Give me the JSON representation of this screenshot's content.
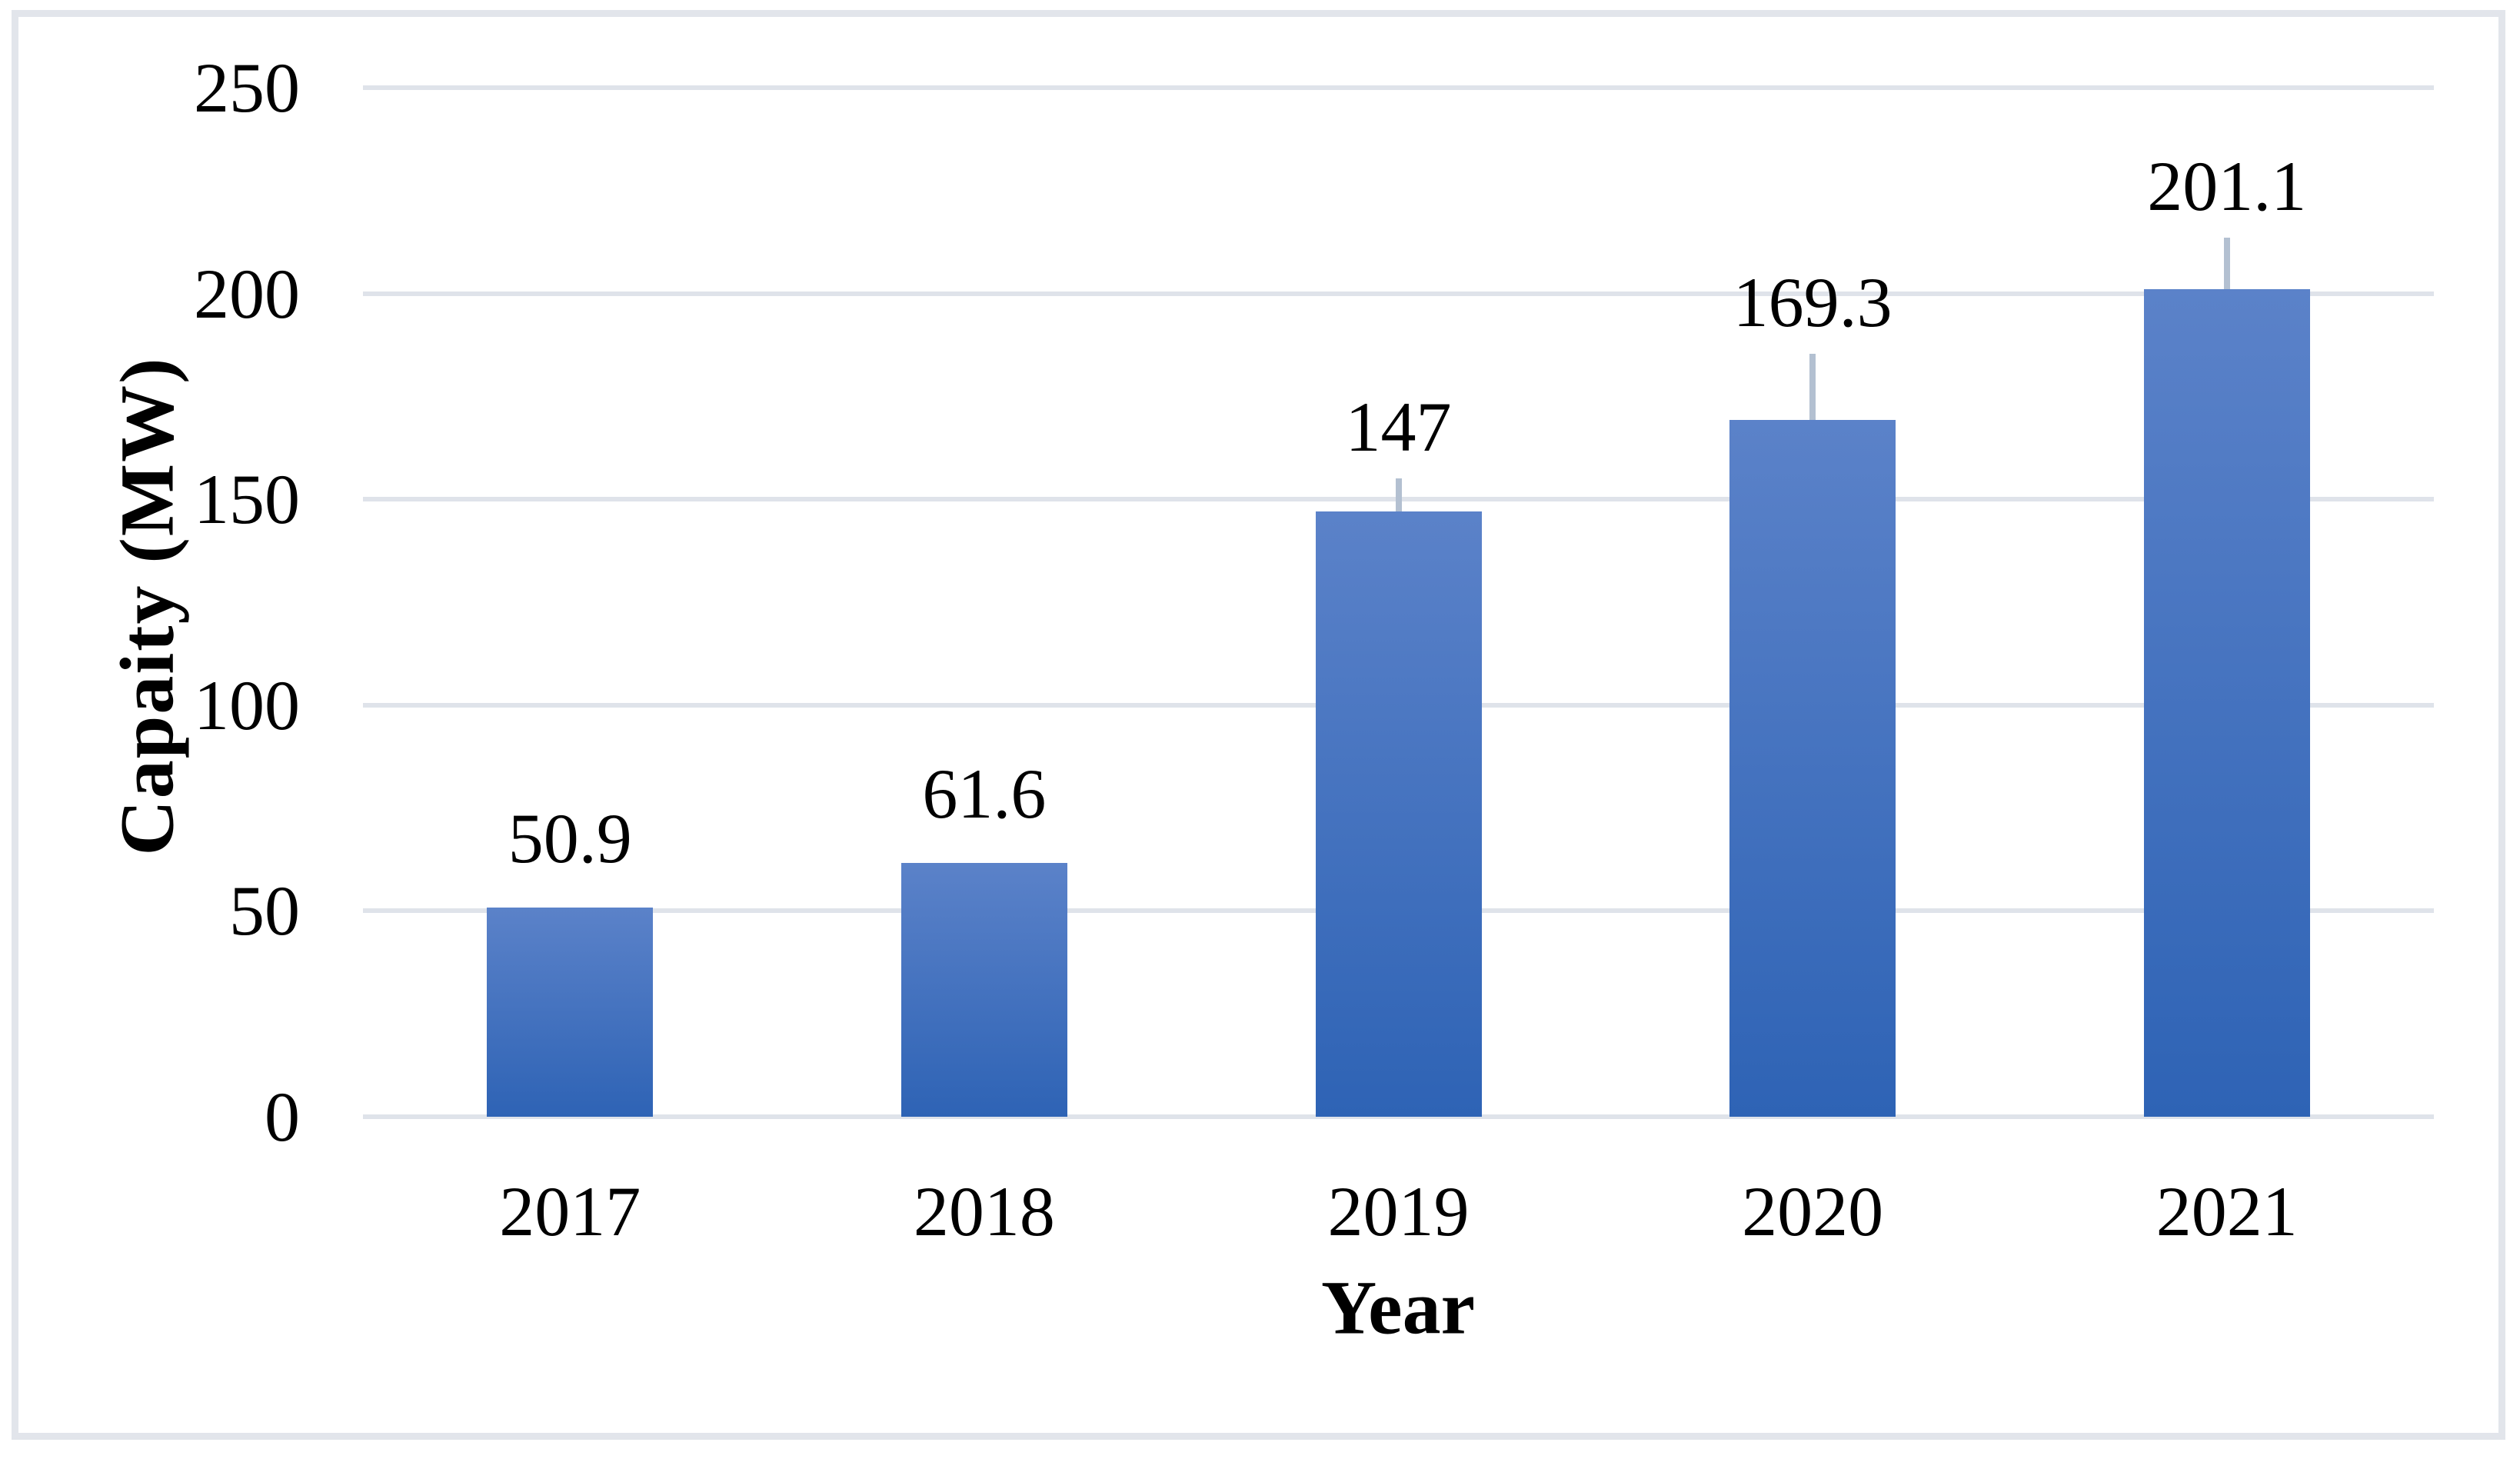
{
  "chart_data": {
    "type": "bar",
    "title": "",
    "categories": [
      "2017",
      "2018",
      "2019",
      "2020",
      "2021"
    ],
    "series": [
      {
        "name": "Capacity",
        "values": [
          50.9,
          61.6,
          147,
          169.3,
          201.1
        ],
        "errors_plus": [
          0,
          0,
          8,
          16,
          12.5
        ]
      }
    ],
    "data_labels": [
      "50.9",
      "61.6",
      "147",
      "169.3",
      "201.1"
    ],
    "xlabel": "Year",
    "ylabel": "Capaity (MW)",
    "y_ticks": [
      0,
      50,
      100,
      150,
      200,
      250
    ],
    "y_tick_labels": [
      "0",
      "50",
      "100",
      "150",
      "200",
      "250"
    ],
    "ylim": [
      0,
      250
    ],
    "grid": true,
    "legend": false
  },
  "colors": {
    "bar_gradient_top": "#5b82c9",
    "bar_gradient_bottom": "#2e63b5",
    "gridline": "#dfe3ea",
    "error_bar": "#b3c0d1",
    "frame_border": "#e2e5eb",
    "text": "#000000",
    "background": "#ffffff"
  }
}
